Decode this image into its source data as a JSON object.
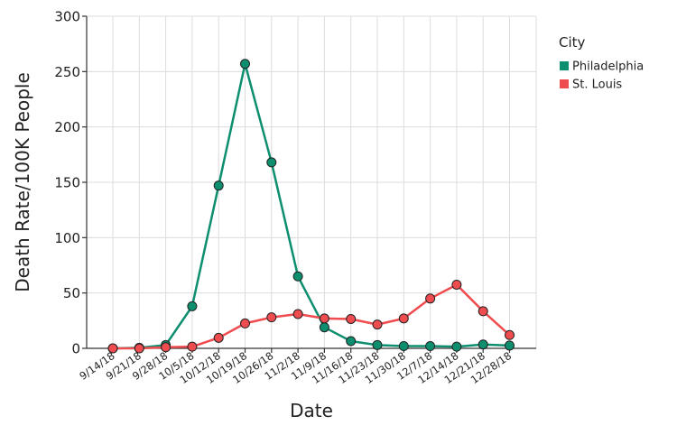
{
  "chart_data": {
    "type": "line",
    "xlabel": "Date",
    "ylabel": "Death Rate/100K People",
    "ylim": [
      0,
      300
    ],
    "yticks": [
      "0",
      "50",
      "100",
      "150",
      "200",
      "250",
      "300"
    ],
    "categories": [
      "9/14/18",
      "9/21/18",
      "9/28/18",
      "10/5/18",
      "10/12/18",
      "10/19/18",
      "10/26/18",
      "11/2/18",
      "11/9/18",
      "11/16/18",
      "11/23/18",
      "11/30/18",
      "12/7/18",
      "12/14/18",
      "12/21/18",
      "12/28/18"
    ],
    "grid": true,
    "legend": {
      "title": "City",
      "position": "right"
    },
    "series": [
      {
        "name": "Philadelphia",
        "color": "#0d8f6f",
        "values": [
          0,
          0.5,
          3,
          38,
          147,
          257,
          168,
          65,
          19,
          6.5,
          3,
          2,
          2,
          1.5,
          3.5,
          2.5
        ]
      },
      {
        "name": "St. Louis",
        "color": "#ef4c4f",
        "values": [
          0,
          0,
          1,
          1.5,
          9.5,
          22.5,
          28,
          31,
          27,
          26.5,
          21.5,
          27,
          45,
          57.5,
          33.5,
          12
        ]
      }
    ]
  }
}
